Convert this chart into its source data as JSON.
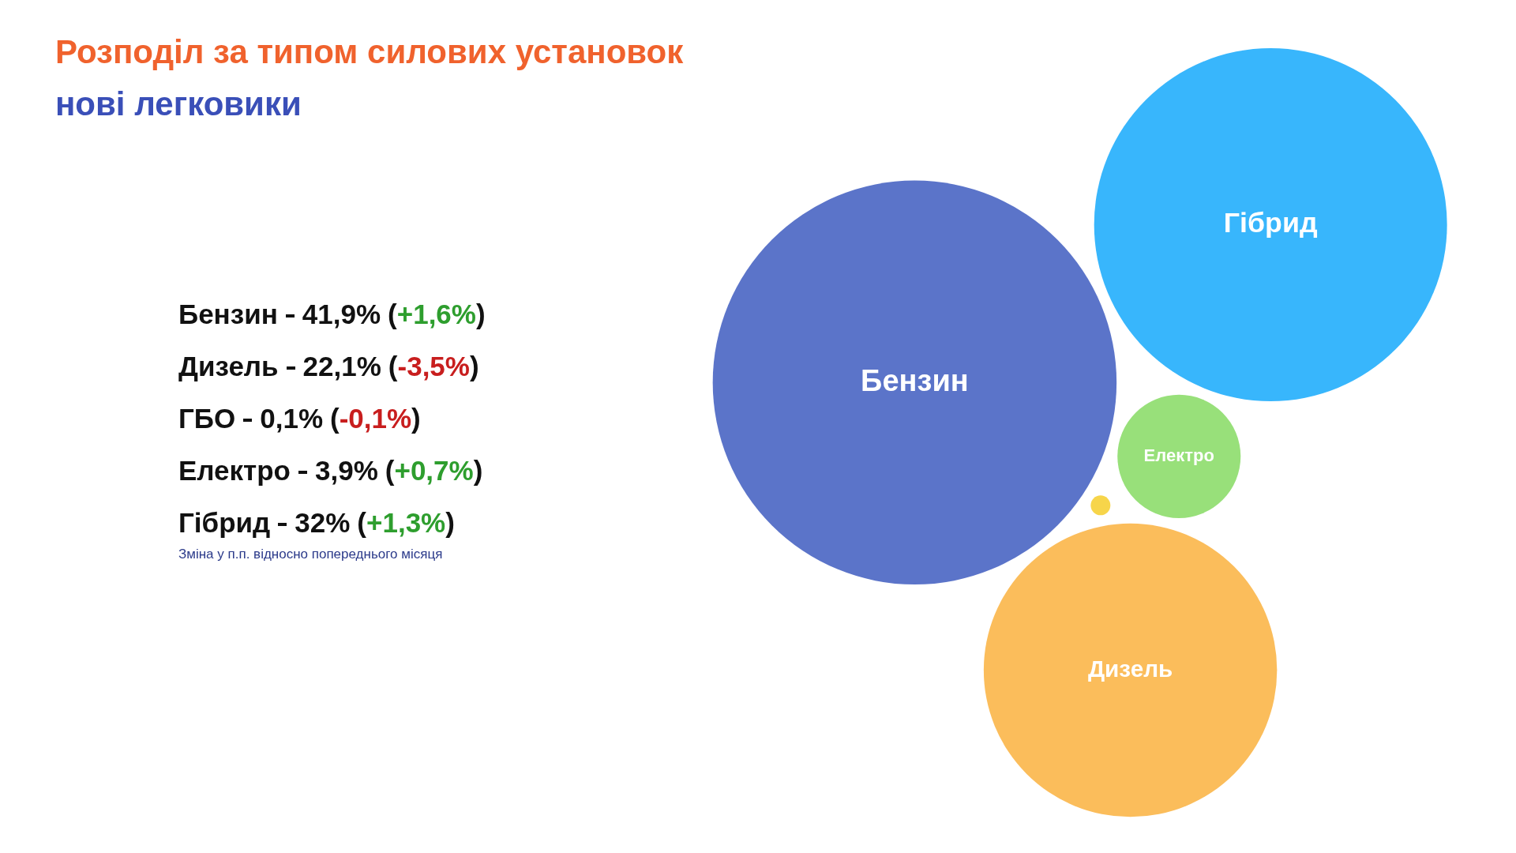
{
  "chart_data": {
    "type": "other",
    "title": "Розподіл за типом силових установок",
    "subtitle": "нові легковики",
    "categories": [
      "Бензин",
      "Дизель",
      "ГБО",
      "Електро",
      "Гібрид"
    ],
    "colors": [
      "#5b74c9",
      "#fbbd5b",
      "#f7d54a",
      "#98e07a",
      "#38b6fc"
    ],
    "series": [
      {
        "values": [
          41.9,
          22.1,
          0.1,
          3.9,
          32
        ],
        "value_labels": [
          "41,9%",
          "22,1%",
          "0,1%",
          "3,9%",
          "32%"
        ]
      },
      {
        "values": [
          1.6,
          -3.5,
          -0.1,
          0.7,
          1.3
        ],
        "value_labels": [
          "(+1,6%)",
          "(-3,5%)",
          "(-0,1%)",
          "(+0,7%)",
          "(+1,3%)"
        ]
      }
    ],
    "annotations": [
      "Зміна у п.п. відносно попереднього місяця"
    ]
  }
}
